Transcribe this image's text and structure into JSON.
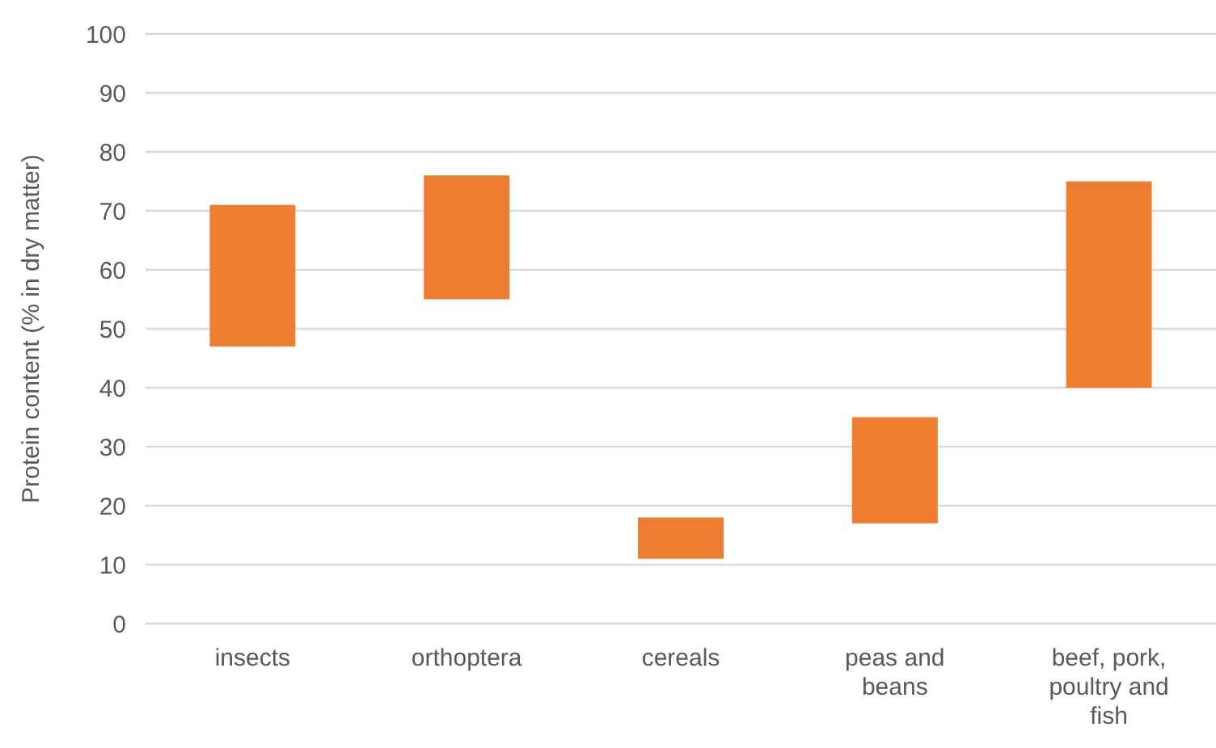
{
  "chart_data": {
    "type": "bar",
    "ylabel": "Protein content (% in dry matter)",
    "categories": [
      "insects",
      "orthoptera",
      "cereals",
      "peas and beans",
      "beef, pork, poultry and fish"
    ],
    "base": [
      47,
      55,
      11,
      17,
      40
    ],
    "values": [
      24,
      21,
      7,
      18,
      35
    ],
    "color": "#ed7d31",
    "ylim": [
      0,
      100
    ],
    "yticks": [
      0,
      10,
      20,
      30,
      40,
      50,
      60,
      70,
      80,
      90,
      100
    ],
    "grid": "y"
  }
}
